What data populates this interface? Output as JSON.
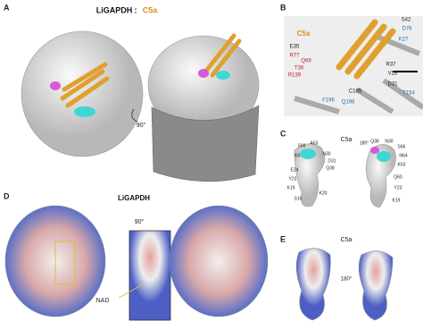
{
  "panels": [
    {
      "label": "A",
      "texts": [
        "LiGAPDH",
        ":",
        "C5a",
        "90°"
      ]
    },
    {
      "label": "B",
      "texts": [
        "C5a",
        "S42",
        "D78",
        "E35",
        "K27",
        "R77",
        "Q69",
        "T36",
        "R139",
        "R37",
        "V28",
        "D31",
        "C195",
        "T154",
        "F196",
        "Q198"
      ]
    },
    {
      "label": "C",
      "texts": [
        "C5a",
        "S66",
        "A63",
        "I65",
        "N30",
        "D31",
        "Q38",
        "E24",
        "Y23",
        "K19",
        "S16",
        "K20",
        "180°",
        "Q38",
        "N30",
        "S66",
        "N64",
        "K63",
        "Q60",
        "Y23",
        "K19"
      ]
    },
    {
      "label": "D",
      "texts": [
        "LiGAPDH",
        "90°",
        "NAD"
      ]
    },
    {
      "label": "E",
      "texts": [
        "C5a",
        "180°"
      ]
    }
  ]
}
